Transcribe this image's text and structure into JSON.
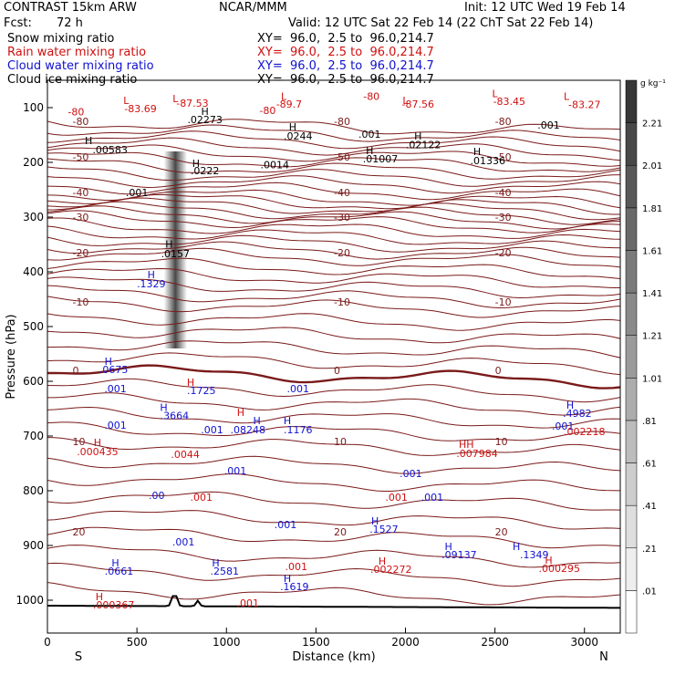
{
  "header": {
    "model": "CONTRAST 15km ARW",
    "org": "NCAR/MMM",
    "init": "Init: 12 UTC Wed 19 Feb 14",
    "fcst_label": "Fcst:",
    "fcst_value": "72 h",
    "valid": "Valid: 12 UTC Sat 22 Feb 14 (22 ChT Sat 22 Feb 14)"
  },
  "legend": [
    {
      "name": "Snow mixing ratio",
      "color": "#000000",
      "xy": "XY=  96.0,  2.5 to  96.0,214.7"
    },
    {
      "name": "Rain water mixing ratio",
      "color": "#d01010",
      "xy": "XY=  96.0,  2.5 to  96.0,214.7"
    },
    {
      "name": "Cloud water mixing ratio",
      "color": "#1010d0",
      "xy": "XY=  96.0,  2.5 to  96.0,214.7"
    },
    {
      "name": "Cloud ice mixing ratio",
      "color": "#000000",
      "xy": "XY=  96.0,  2.5 to  96.0,214.7"
    }
  ],
  "chart_data": {
    "type": "cross-section",
    "xlabel": "Distance (km)",
    "ylabel": "Pressure (hPa)",
    "xlim": [
      0,
      3200
    ],
    "ylim": [
      1060,
      50
    ],
    "xticks": [
      0,
      500,
      1000,
      1500,
      2000,
      2500,
      3000
    ],
    "yticks": [
      100,
      200,
      300,
      400,
      500,
      600,
      700,
      800,
      900,
      1000
    ],
    "x_end_labels": {
      "left": "S",
      "right": "N"
    },
    "colorbar": {
      "unit": "g kg⁻¹",
      "levels": [
        ".01",
        ".21",
        ".41",
        ".61",
        ".81",
        "1.01",
        "1.21",
        "1.41",
        "1.61",
        "1.81",
        "2.01",
        "2.21"
      ]
    },
    "temperature_contours": [
      {
        "label": "-80",
        "p": 125
      },
      {
        "label": "-50",
        "p": 190
      },
      {
        "label": "-40",
        "p": 255
      },
      {
        "label": "-30",
        "p": 300
      },
      {
        "label": "-20",
        "p": 365
      },
      {
        "label": "-10",
        "p": 455
      },
      {
        "label": "0",
        "p": 580
      },
      {
        "label": "10",
        "p": 710
      },
      {
        "label": "20",
        "p": 875
      }
    ],
    "annotations": [
      {
        "text": "L",
        "x": 440,
        "p": 93,
        "color": "#d01010"
      },
      {
        "text": "-83.69",
        "x": 520,
        "p": 108,
        "color": "#d01010"
      },
      {
        "text": "L",
        "x": 715,
        "p": 90,
        "color": "#d01010"
      },
      {
        "text": "-87.53",
        "x": 810,
        "p": 98,
        "color": "#d01010"
      },
      {
        "text": "-80",
        "x": 1230,
        "p": 112,
        "color": "#d01010"
      },
      {
        "text": "L",
        "x": 1320,
        "p": 86,
        "color": "#d01010"
      },
      {
        "text": "-89.7",
        "x": 1350,
        "p": 100,
        "color": "#d01010"
      },
      {
        "text": "-80",
        "x": 1810,
        "p": 86,
        "color": "#d01010"
      },
      {
        "text": "L",
        "x": 2000,
        "p": 93,
        "color": "#d01010"
      },
      {
        "text": "-87.56",
        "x": 2070,
        "p": 100,
        "color": "#d01010"
      },
      {
        "text": "L",
        "x": 2500,
        "p": 81,
        "color": "#d01010"
      },
      {
        "text": "-83.45",
        "x": 2580,
        "p": 95,
        "color": "#d01010"
      },
      {
        "text": "L",
        "x": 2900,
        "p": 86,
        "color": "#d01010"
      },
      {
        "text": "-83.27",
        "x": 3000,
        "p": 101,
        "color": "#d01010"
      },
      {
        "text": "-80",
        "x": 160,
        "p": 114,
        "color": "#d01010"
      },
      {
        "text": "H",
        "x": 880,
        "p": 113,
        "color": "#000000"
      },
      {
        "text": ".02273",
        "x": 880,
        "p": 128,
        "color": "#000000"
      },
      {
        "text": "H",
        "x": 1370,
        "p": 142,
        "color": "#000000"
      },
      {
        "text": ".0244",
        "x": 1400,
        "p": 158,
        "color": "#000000"
      },
      {
        "text": ".001",
        "x": 1800,
        "p": 155,
        "color": "#000000"
      },
      {
        "text": "H",
        "x": 2070,
        "p": 158,
        "color": "#000000"
      },
      {
        "text": ".02122",
        "x": 2100,
        "p": 174,
        "color": "#000000"
      },
      {
        "text": ".001",
        "x": 2800,
        "p": 138,
        "color": "#000000"
      },
      {
        "text": "H",
        "x": 230,
        "p": 167,
        "color": "#000000"
      },
      {
        "text": ".00583",
        "x": 350,
        "p": 183,
        "color": "#000000"
      },
      {
        "text": "H",
        "x": 1800,
        "p": 185,
        "color": "#000000"
      },
      {
        "text": ".01007",
        "x": 1860,
        "p": 200,
        "color": "#000000"
      },
      {
        "text": "H",
        "x": 2400,
        "p": 187,
        "color": "#000000"
      },
      {
        "text": ".01336",
        "x": 2460,
        "p": 203,
        "color": "#000000"
      },
      {
        "text": "H",
        "x": 830,
        "p": 208,
        "color": "#000000"
      },
      {
        "text": ".0222",
        "x": 880,
        "p": 222,
        "color": "#000000"
      },
      {
        "text": ".0014",
        "x": 1270,
        "p": 211,
        "color": "#000000"
      },
      {
        "text": ".001",
        "x": 500,
        "p": 262,
        "color": "#000000"
      },
      {
        "text": "H",
        "x": 680,
        "p": 356,
        "color": "#000000"
      },
      {
        "text": ".0157",
        "x": 715,
        "p": 373,
        "color": "#000000"
      },
      {
        "text": "H",
        "x": 580,
        "p": 412,
        "color": "#1010d0"
      },
      {
        "text": ".1329",
        "x": 580,
        "p": 428,
        "color": "#1010d0"
      },
      {
        "text": "H",
        "x": 340,
        "p": 570,
        "color": "#1010d0"
      },
      {
        "text": ".0675",
        "x": 370,
        "p": 585,
        "color": "#1010d0"
      },
      {
        "text": ".001",
        "x": 380,
        "p": 620,
        "color": "#1010d0"
      },
      {
        "text": "H",
        "x": 800,
        "p": 608,
        "color": "#d01010"
      },
      {
        "text": ".1725",
        "x": 860,
        "p": 623,
        "color": "#1010d0"
      },
      {
        "text": ".001",
        "x": 1400,
        "p": 620,
        "color": "#1010d0"
      },
      {
        "text": "H",
        "x": 650,
        "p": 654,
        "color": "#1010d0"
      },
      {
        "text": ".3664",
        "x": 710,
        "p": 669,
        "color": "#1010d0"
      },
      {
        "text": ".001",
        "x": 380,
        "p": 687,
        "color": "#1010d0"
      },
      {
        "text": "H",
        "x": 1080,
        "p": 663,
        "color": "#d01010"
      },
      {
        "text": "H",
        "x": 1170,
        "p": 678,
        "color": "#1010d0"
      },
      {
        "text": ".08248",
        "x": 1120,
        "p": 695,
        "color": "#1010d0"
      },
      {
        "text": "H",
        "x": 1340,
        "p": 678,
        "color": "#1010d0"
      },
      {
        "text": ".1176",
        "x": 1400,
        "p": 695,
        "color": "#1010d0"
      },
      {
        "text": ".001",
        "x": 920,
        "p": 695,
        "color": "#1010d0"
      },
      {
        "text": "H",
        "x": 280,
        "p": 718,
        "color": "#d01010"
      },
      {
        "text": ".000435",
        "x": 280,
        "p": 735,
        "color": "#d01010"
      },
      {
        "text": ".0044",
        "x": 770,
        "p": 740,
        "color": "#d01010"
      },
      {
        "text": "HH",
        "x": 2340,
        "p": 722,
        "color": "#d01010"
      },
      {
        "text": ".007984",
        "x": 2400,
        "p": 738,
        "color": "#d01010"
      },
      {
        "text": "H",
        "x": 2920,
        "p": 650,
        "color": "#1010d0"
      },
      {
        "text": ".4982",
        "x": 2960,
        "p": 665,
        "color": "#1010d0"
      },
      {
        "text": ".001",
        "x": 2880,
        "p": 688,
        "color": "#1010d0"
      },
      {
        "text": ".002218",
        "x": 3000,
        "p": 698,
        "color": "#d01010"
      },
      {
        "text": ".001",
        "x": 1050,
        "p": 770,
        "color": "#1010d0"
      },
      {
        "text": ".001",
        "x": 2030,
        "p": 775,
        "color": "#1010d0"
      },
      {
        "text": ".00",
        "x": 610,
        "p": 815,
        "color": "#1010d0"
      },
      {
        "text": ".001",
        "x": 860,
        "p": 818,
        "color": "#d01010"
      },
      {
        "text": ".001",
        "x": 1950,
        "p": 818,
        "color": "#d01010"
      },
      {
        "text": ".001",
        "x": 2150,
        "p": 818,
        "color": "#1010d0"
      },
      {
        "text": ".001",
        "x": 1330,
        "p": 868,
        "color": "#1010d0"
      },
      {
        "text": "H",
        "x": 1830,
        "p": 862,
        "color": "#1010d0"
      },
      {
        "text": ".1527",
        "x": 1880,
        "p": 877,
        "color": "#1010d0"
      },
      {
        "text": ".001",
        "x": 760,
        "p": 900,
        "color": "#1010d0"
      },
      {
        "text": "H",
        "x": 380,
        "p": 938,
        "color": "#1010d0"
      },
      {
        "text": ".0661",
        "x": 400,
        "p": 953,
        "color": "#1010d0"
      },
      {
        "text": "H",
        "x": 940,
        "p": 938,
        "color": "#1010d0"
      },
      {
        "text": ".2581",
        "x": 990,
        "p": 953,
        "color": "#1010d0"
      },
      {
        "text": "H",
        "x": 1340,
        "p": 967,
        "color": "#1010d0"
      },
      {
        "text": ".1619",
        "x": 1380,
        "p": 982,
        "color": "#1010d0"
      },
      {
        "text": ".001",
        "x": 1390,
        "p": 945,
        "color": "#d01010"
      },
      {
        "text": "H",
        "x": 1870,
        "p": 935,
        "color": "#d01010"
      },
      {
        "text": ".002272",
        "x": 1920,
        "p": 950,
        "color": "#d01010"
      },
      {
        "text": "H",
        "x": 2240,
        "p": 908,
        "color": "#1010d0"
      },
      {
        "text": ".09137",
        "x": 2300,
        "p": 923,
        "color": "#1010d0"
      },
      {
        "text": "H",
        "x": 2620,
        "p": 908,
        "color": "#1010d0"
      },
      {
        "text": ".1349",
        "x": 2720,
        "p": 923,
        "color": "#1010d0"
      },
      {
        "text": "H",
        "x": 2800,
        "p": 933,
        "color": "#d01010"
      },
      {
        "text": ".000295",
        "x": 2860,
        "p": 948,
        "color": "#d01010"
      },
      {
        "text": "H",
        "x": 290,
        "p": 1000,
        "color": "#d01010"
      },
      {
        "text": ".000367",
        "x": 370,
        "p": 1015,
        "color": "#d01010"
      },
      {
        "text": ".001",
        "x": 1120,
        "p": 1012,
        "color": "#d01010"
      }
    ]
  }
}
